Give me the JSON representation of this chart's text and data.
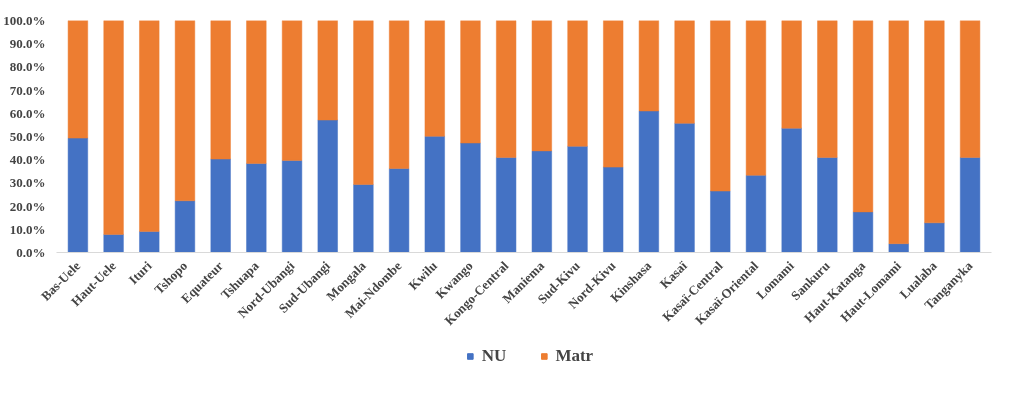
{
  "chart_data": {
    "type": "bar",
    "stacked": true,
    "categories": [
      "Bas-Uele",
      "Haut-Uele",
      "Ituri",
      "Tshopo",
      "Equateur",
      "Tshuapa",
      "Nord-Ubangi",
      "Sud-Ubangi",
      "Mongala",
      "Mai-Ndombe",
      "Kwilu",
      "Kwango",
      "Kongo-Central",
      "Maniema",
      "Sud-Kivu",
      "Nord-Kivu",
      "Kinshasa",
      "Kasaï",
      "Kasaï-Central",
      "Kasaï-Oriental",
      "Lomami",
      "Sankuru",
      "Haut-Katanga",
      "Haut-Lomami",
      "Lualaba",
      "Tanganyka"
    ],
    "series": [
      {
        "name": "NU",
        "color": "#4472c4",
        "values": [
          49.3,
          7.8,
          9.1,
          22.3,
          40.3,
          38.4,
          39.7,
          57.1,
          29.3,
          36.2,
          50.1,
          47.2,
          41.0,
          43.8,
          45.8,
          36.8,
          61.0,
          55.7,
          26.5,
          33.3,
          53.6,
          41.0,
          17.5,
          3.8,
          12.8,
          41.0
        ]
      },
      {
        "name": "Matr",
        "color": "#ed7d31",
        "values": [
          50.7,
          92.2,
          90.9,
          77.7,
          59.7,
          61.6,
          60.3,
          42.9,
          70.7,
          63.8,
          49.9,
          52.8,
          59.0,
          56.2,
          54.2,
          63.2,
          39.0,
          44.3,
          73.5,
          66.7,
          46.4,
          59.0,
          82.5,
          96.2,
          87.2,
          59.0
        ]
      }
    ],
    "ylim": [
      0,
      100
    ],
    "yticks": [
      {
        "value": 0,
        "label": "0.0%"
      },
      {
        "value": 10,
        "label": "10.0%"
      },
      {
        "value": 20,
        "label": "20.0%"
      },
      {
        "value": 30,
        "label": "30.0%"
      },
      {
        "value": 40,
        "label": "40.0%"
      },
      {
        "value": 50,
        "label": "50.0%"
      },
      {
        "value": 60,
        "label": "60.0%"
      },
      {
        "value": 70,
        "label": "70.0%"
      },
      {
        "value": 80,
        "label": "80.0%"
      },
      {
        "value": 90,
        "label": "90.0%"
      },
      {
        "value": 100,
        "label": "100.0%"
      }
    ],
    "grid": false,
    "legend": "bottom"
  }
}
